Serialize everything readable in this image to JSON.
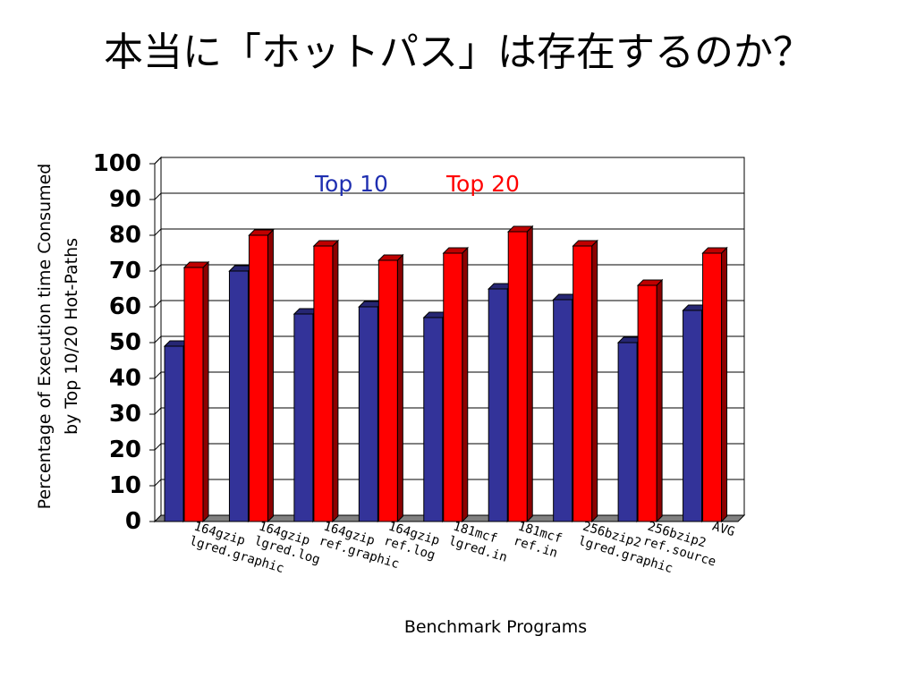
{
  "slide": {
    "title": "本当に「ホットパス」は存在するのか？"
  },
  "chart_data": {
    "type": "bar",
    "title": "",
    "xlabel": "Benchmark Programs",
    "ylabel_lines": [
      "Percentage of Execution time Consumed",
      "by Top 10/20 Hot-Paths"
    ],
    "ylim": [
      0,
      100
    ],
    "yticks": [
      0,
      10,
      20,
      30,
      40,
      50,
      60,
      70,
      80,
      90,
      100
    ],
    "grid": true,
    "legend_position": "top-center",
    "categories": [
      [
        "164gzip",
        "lgred.graphic"
      ],
      [
        "164gzip",
        "lgred.log"
      ],
      [
        "164gzip",
        "ref.graphic"
      ],
      [
        "164gzip",
        "ref.log"
      ],
      [
        "181mcf",
        "lgred.in"
      ],
      [
        "181mcf",
        "ref.in"
      ],
      [
        "256bzip2",
        "lgred.graphic"
      ],
      [
        "256bzip2",
        "ref.source"
      ],
      [
        "AVG"
      ]
    ],
    "series": [
      {
        "name": "Top 10",
        "color": "#333399",
        "values": [
          49,
          70,
          58,
          60,
          57,
          65,
          62,
          50,
          59
        ]
      },
      {
        "name": "Top 20",
        "color": "#ff0000",
        "values": [
          71,
          80,
          77,
          73,
          75,
          81,
          77,
          66,
          75
        ]
      }
    ]
  }
}
